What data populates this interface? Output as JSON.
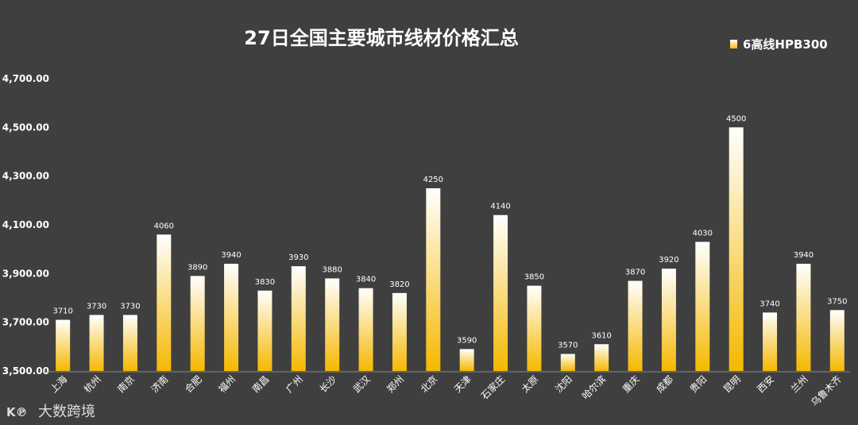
{
  "watermark": "大数跨境",
  "chart_data": {
    "type": "bar",
    "title": "27日全国主要城市线材价格汇总",
    "legend_position": "top-right",
    "grid": false,
    "ylim": [
      3500,
      4700
    ],
    "yticks": [
      "3,500.00",
      "3,700.00",
      "3,900.00",
      "4,100.00",
      "4,300.00",
      "4,500.00",
      "4,700.00"
    ],
    "categories": [
      "上海",
      "杭州",
      "南京",
      "济南",
      "合肥",
      "福州",
      "南昌",
      "广州",
      "长沙",
      "武汉",
      "郑州",
      "北京",
      "天津",
      "石家庄",
      "太原",
      "沈阳",
      "哈尔滨",
      "重庆",
      "成都",
      "贵阳",
      "昆明",
      "西安",
      "兰州",
      "乌鲁木齐"
    ],
    "series": [
      {
        "name": "6高线HPB300",
        "color_top": "#ffffff",
        "color_bottom": "#f5b800",
        "values": [
          3710,
          3730,
          3730,
          4060,
          3890,
          3940,
          3830,
          3930,
          3880,
          3840,
          3820,
          4250,
          3590,
          4140,
          3850,
          3570,
          3610,
          3870,
          3920,
          4030,
          4500,
          3740,
          3940,
          3750
        ]
      }
    ]
  }
}
